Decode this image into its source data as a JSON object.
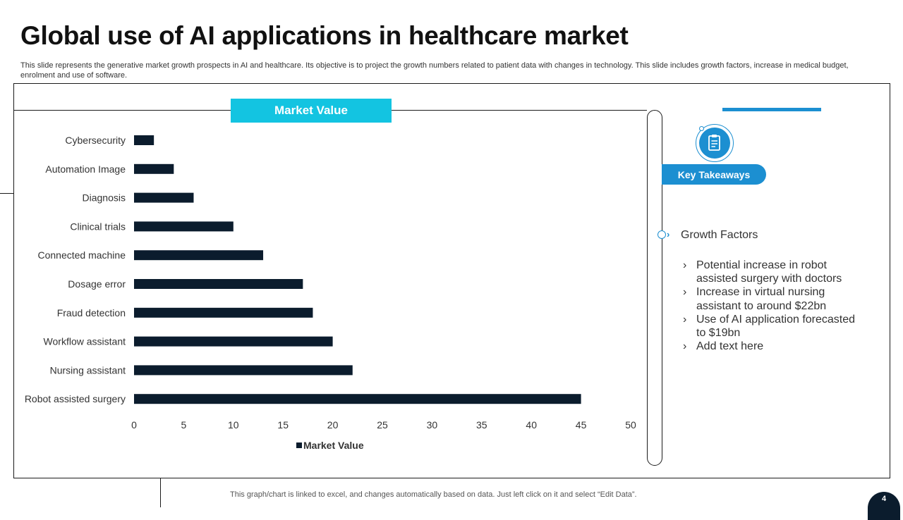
{
  "slide": {
    "title": "Global use of AI applications in healthcare market",
    "description": "This slide represents the generative market growth prospects in AI and healthcare. Its objective is to project the growth numbers related to patient data with changes in technology. This slide includes growth factors, increase in medical budget, enrolment and use of software.",
    "footnote": "This graph/chart is linked to excel,  and changes automatically based on data. Just left click on it and select “Edit Data”.",
    "page_number": "4"
  },
  "chart_banner": "Market Value",
  "chart_data": {
    "type": "bar",
    "orientation": "horizontal",
    "categories": [
      "Cybersecurity",
      "Automation Image",
      "Diagnosis",
      "Clinical trials",
      "Connected machine",
      "Dosage error",
      "Fraud detection",
      "Workflow assistant",
      "Nursing assistant",
      "Robot assisted surgery"
    ],
    "series": [
      {
        "name": "Market Value",
        "values": [
          2,
          4,
          6,
          10,
          13,
          17,
          18,
          20,
          22,
          45
        ]
      }
    ],
    "xlim": [
      0,
      50
    ],
    "x_ticks": [
      0,
      5,
      10,
      15,
      20,
      25,
      30,
      35,
      40,
      45,
      50
    ],
    "grid": false,
    "legend_position": "bottom",
    "bar_color": "#0b1c2d"
  },
  "takeaways": {
    "header": "Key Takeaways",
    "icon": "document-icon",
    "group_label": "Growth Factors",
    "bullet_glyph": "›",
    "bullets": [
      "Potential increase in robot assisted surgery with doctors",
      "Increase in virtual nursing assistant to around $22bn",
      "Use of AI application forecasted to $19bn",
      "Add text here"
    ]
  },
  "colors": {
    "accent_cyan": "#13c4e1",
    "accent_blue": "#1c8fd1",
    "dark_navy": "#0b1c2d"
  }
}
